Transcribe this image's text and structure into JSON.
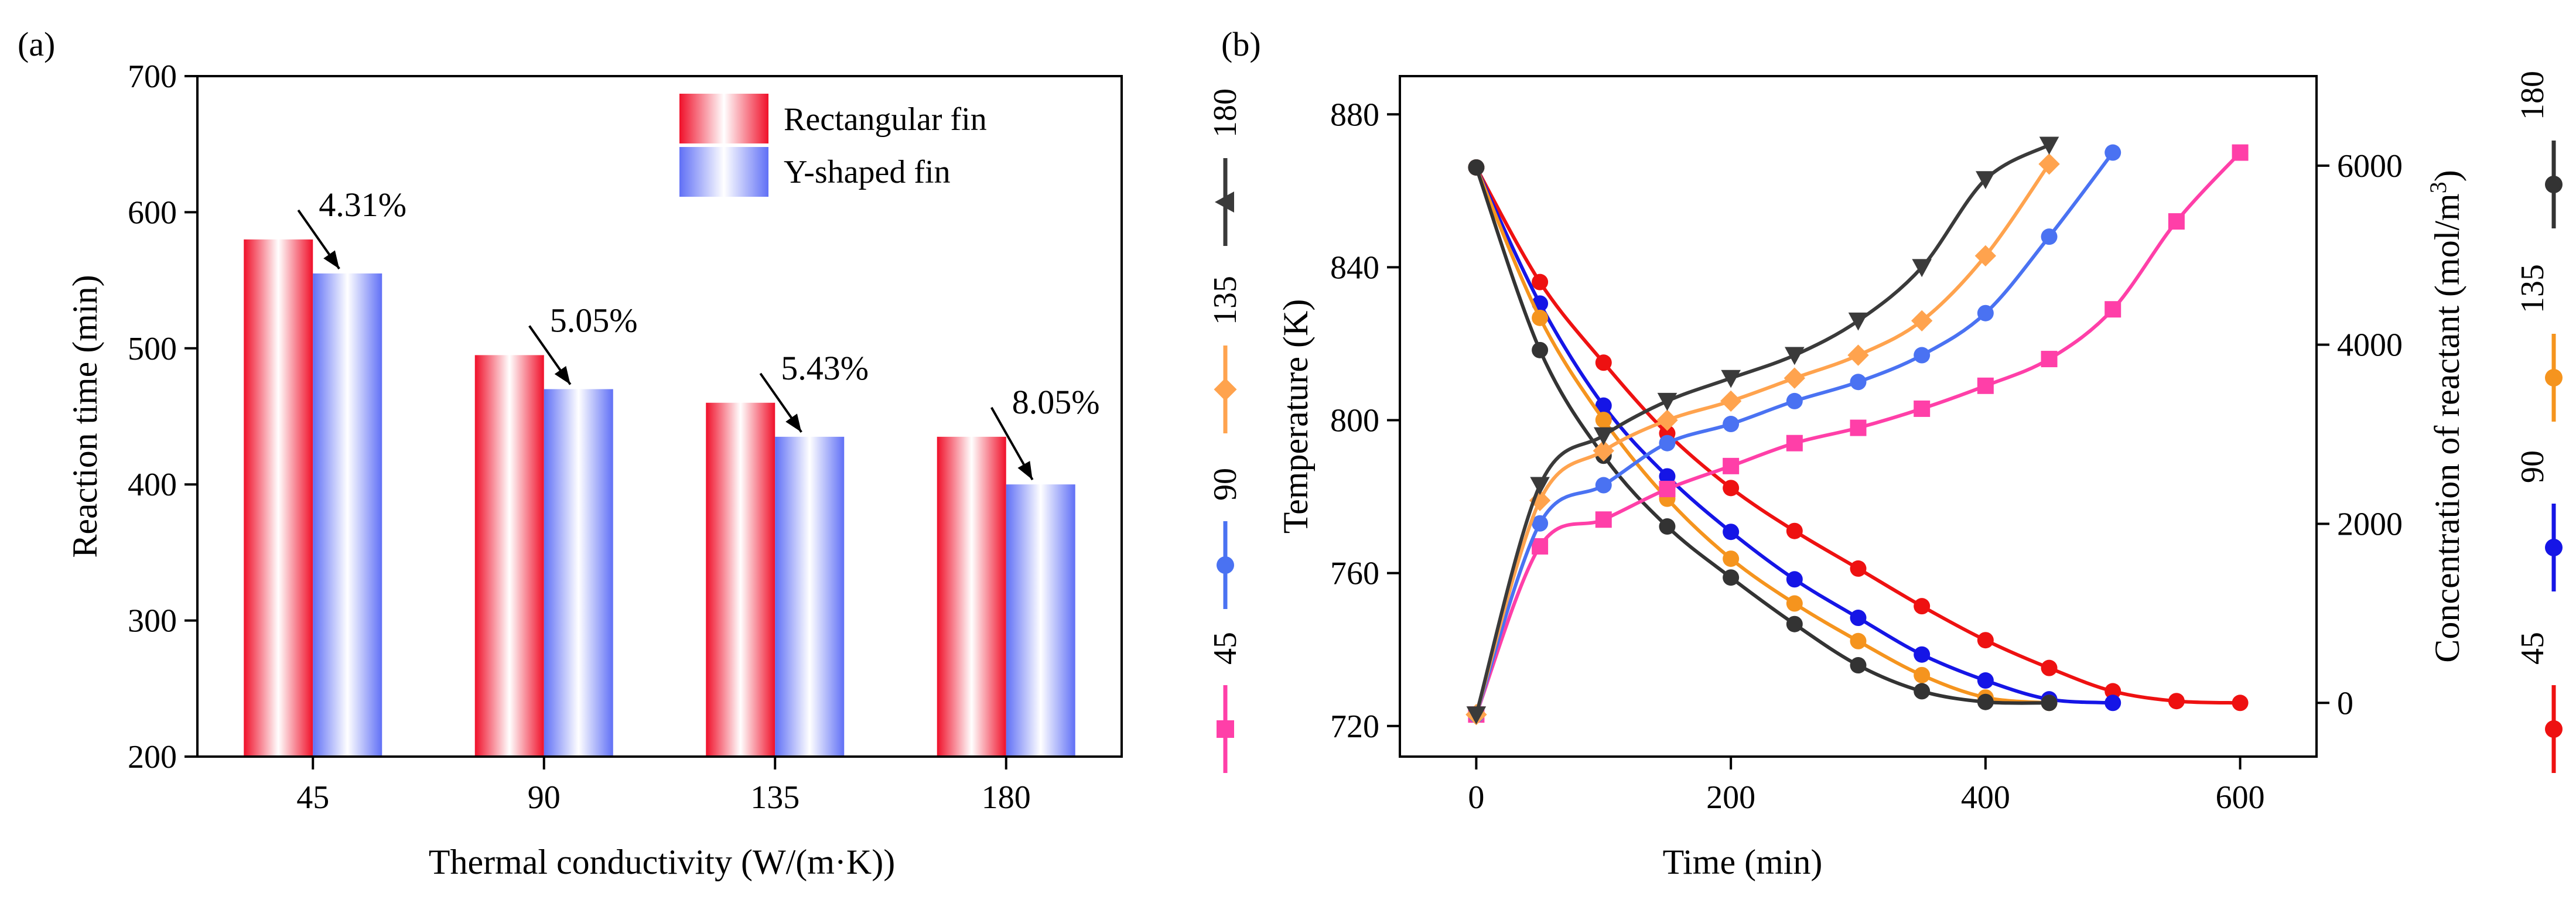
{
  "colors": {
    "rect_fin": "#f0102a",
    "y_fin": "#6070f6",
    "s45": "#ff3fa8",
    "s90": "#4a72f2",
    "s135": "#ffa34e",
    "s180": "#3a3a3a",
    "c45": "#ee1111",
    "c90": "#1515e6",
    "c135": "#f5941e",
    "c180": "#333333"
  },
  "chart_data": [
    {
      "type": "bar",
      "panel_label": "(a)",
      "title": "",
      "xlabel": "Thermal conductivity (W/(m·K))",
      "ylabel": "Reaction time (min)",
      "ylim": [
        200,
        700
      ],
      "yticks": [
        "200",
        "300",
        "400",
        "500",
        "600",
        "700"
      ],
      "categories": [
        "45",
        "90",
        "135",
        "180"
      ],
      "series": [
        {
          "name": "Rectangular fin",
          "values": [
            580,
            495,
            460,
            435
          ]
        },
        {
          "name": "Y-shaped fin",
          "values": [
            555,
            470,
            435,
            400
          ]
        }
      ],
      "annotations": [
        "4.31%",
        "5.05%",
        "5.43%",
        "8.05%"
      ],
      "legend_position": "top-right"
    },
    {
      "type": "line",
      "panel_label": "(b)",
      "title": "",
      "xlabel": "Time (min)",
      "ylabel": "Temperature (K)",
      "y2label": "Concentration of reactant (mol/m³)",
      "y2label_parts": [
        "Concentration of reactant (mol/m",
        "3",
        ")"
      ],
      "xlim": [
        -60,
        660
      ],
      "ylim": [
        712,
        890
      ],
      "y2lim": [
        -600,
        7000
      ],
      "xticks": [
        "0",
        "200",
        "400",
        "600"
      ],
      "yticks": [
        "720",
        "760",
        "800",
        "840",
        "880"
      ],
      "y2ticks": [
        "0",
        "2000",
        "4000",
        "6000"
      ],
      "temperature_series": [
        {
          "name": "180",
          "marker": "triangle-down",
          "x": [
            0,
            50,
            100,
            150,
            200,
            250,
            300,
            350,
            400,
            450
          ],
          "y": [
            723,
            783,
            796,
            805,
            811,
            817,
            826,
            840,
            863,
            872
          ]
        },
        {
          "name": "135",
          "marker": "diamond",
          "x": [
            0,
            50,
            100,
            150,
            200,
            250,
            300,
            350,
            400,
            450
          ],
          "y": [
            723,
            779,
            792,
            800,
            805,
            811,
            817,
            826,
            843,
            867
          ]
        },
        {
          "name": "90",
          "marker": "circle",
          "x": [
            0,
            50,
            100,
            150,
            200,
            250,
            300,
            350,
            400,
            450,
            500
          ],
          "y": [
            723,
            773,
            783,
            794,
            799,
            805,
            810,
            817,
            828,
            848,
            870
          ]
        },
        {
          "name": "45",
          "marker": "square",
          "x": [
            0,
            50,
            100,
            150,
            200,
            250,
            300,
            350,
            400,
            450,
            500,
            550,
            600
          ],
          "y": [
            723,
            767,
            774,
            782,
            788,
            794,
            798,
            803,
            809,
            816,
            829,
            852,
            870
          ]
        }
      ],
      "concentration_series": [
        {
          "name": "180",
          "marker": "circle",
          "x": [
            0,
            50,
            100,
            150,
            200,
            250,
            300,
            350,
            400,
            450
          ],
          "y": [
            5980,
            3940,
            2760,
            1970,
            1400,
            880,
            420,
            130,
            10,
            0
          ]
        },
        {
          "name": "135",
          "marker": "circle",
          "x": [
            0,
            50,
            100,
            150,
            200,
            250,
            300,
            350,
            400,
            450
          ],
          "y": [
            5980,
            4300,
            3160,
            2280,
            1610,
            1110,
            690,
            310,
            60,
            0
          ]
        },
        {
          "name": "90",
          "marker": "circle",
          "x": [
            0,
            50,
            100,
            150,
            200,
            250,
            300,
            350,
            400,
            450,
            500
          ],
          "y": [
            5980,
            4460,
            3320,
            2530,
            1910,
            1380,
            950,
            540,
            250,
            40,
            0
          ]
        },
        {
          "name": "45",
          "marker": "circle",
          "x": [
            0,
            50,
            100,
            150,
            200,
            250,
            300,
            350,
            400,
            450,
            500,
            550,
            600
          ],
          "y": [
            5980,
            4700,
            3800,
            3010,
            2400,
            1920,
            1500,
            1080,
            700,
            390,
            130,
            20,
            0
          ]
        }
      ],
      "left_legend": [
        "45",
        "90",
        "135",
        "180"
      ],
      "right_legend": [
        "45",
        "90",
        "135",
        "180"
      ]
    }
  ]
}
